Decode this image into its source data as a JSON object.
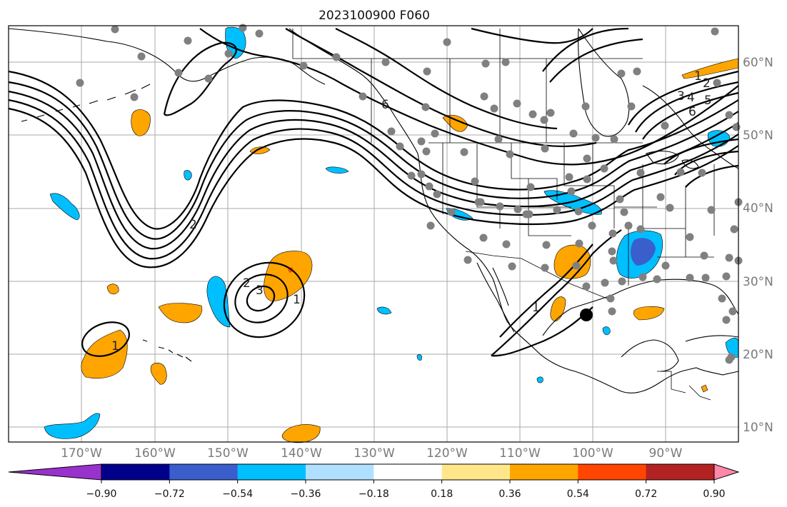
{
  "title": "2023100900 F060",
  "lon_labels": [
    "170°W",
    "160°W",
    "150°W",
    "140°W",
    "130°W",
    "120°W",
    "110°W",
    "100°W",
    "90°W"
  ],
  "lat_labels": [
    "60°N",
    "50°N",
    "40°N",
    "30°N",
    "20°N",
    "10°N"
  ],
  "colorbar": {
    "tick_labels": [
      "−0.90",
      "−0.72",
      "−0.54",
      "−0.36",
      "−0.18",
      "0.18",
      "0.36",
      "0.54",
      "0.72",
      "0.90"
    ],
    "colors": [
      "#9932CC",
      "#00008B",
      "#3A5FCD",
      "#00BFFF",
      "#B0E0FF",
      "#FFFFFF",
      "#FFE68A",
      "#FFA500",
      "#FF4500",
      "#B22222",
      "#FF88AA"
    ]
  },
  "contour_labels": [
    "2",
    "2",
    "3",
    "1",
    "1",
    "1",
    "1",
    "2",
    "3",
    "4",
    "5",
    "6",
    "6"
  ],
  "colors": {
    "positive_shade": "#FFA500",
    "positive_strong": "#FF4500",
    "negative_shade": "#00BFFF",
    "negative_strong": "#3A5FCD",
    "station_marker": "#808080",
    "center_marker": "#000000",
    "grid": "#a8a8a8"
  }
}
